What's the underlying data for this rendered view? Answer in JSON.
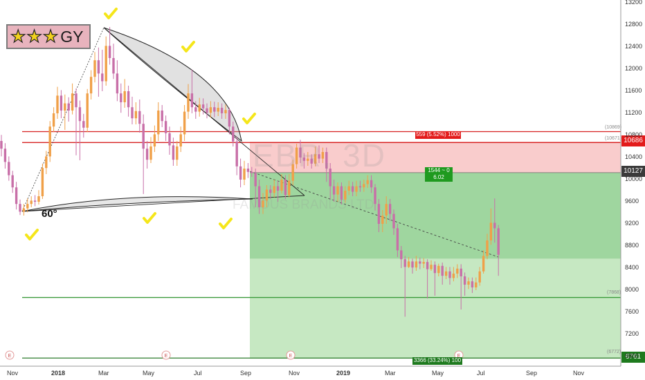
{
  "badge": {
    "star_count": 3,
    "text": "GY"
  },
  "angle_label": "60°",
  "price_axis": {
    "ticks": [
      "13200",
      "12800",
      "12400",
      "12000",
      "11600",
      "11200",
      "10800",
      "10400",
      "10000",
      "9600",
      "9200",
      "8800",
      "8400",
      "8000",
      "7600",
      "7200",
      "6800"
    ],
    "tags": {
      "stop": "10686",
      "entry": "10127",
      "target": "6761"
    }
  },
  "time_axis": {
    "labels": [
      "Nov",
      "2018",
      "Mar",
      "May",
      "Jul",
      "Sep",
      "Nov",
      "2019",
      "Mar",
      "May",
      "Jul",
      "Sep",
      "Nov"
    ],
    "bold": [
      "2018",
      "2019"
    ]
  },
  "position": {
    "risk_label": "559 (5.52%) 1000",
    "rr_line1": "1544 ~ 0",
    "rr_line2": "6.02",
    "reward_label": "3366 (33.24%) 100",
    "levels_small": [
      "(10869)",
      "(10671)",
      "(7868)",
      "(6772)"
    ]
  },
  "watermark": {
    "symbol": "EBR, 3D",
    "name": "FAMOUS BRANDS LTD"
  },
  "colors": {
    "bull_candle": "#f0a048",
    "bear_candle": "#c86fa8",
    "stop_line": "#e31b1b",
    "target_line": "#2e8b2e",
    "check": "#f5e61a"
  },
  "chart_data": {
    "type": "candlestick",
    "yscale": [
      6800,
      13200
    ],
    "x_range": [
      "2017-10-10",
      "2019-11-30"
    ],
    "horizontal_levels": [
      10869,
      10671,
      7868,
      6772
    ],
    "position_box": {
      "entry": 10127,
      "stop": 10686,
      "target": 6761,
      "mid": 8570
    },
    "candles": [
      [
        10700,
        10560,
        10810,
        10420
      ],
      [
        10560,
        10320,
        10660,
        10200
      ],
      [
        10320,
        10080,
        10420,
        9980
      ],
      [
        10080,
        9860,
        10160,
        9760
      ],
      [
        9860,
        9560,
        9960,
        9460
      ],
      [
        9560,
        9420,
        9640,
        9360
      ],
      [
        9420,
        9480,
        9560,
        9350
      ],
      [
        9480,
        9560,
        9660,
        9410
      ],
      [
        9560,
        9620,
        9700,
        9500
      ],
      [
        9620,
        9600,
        9720,
        9520
      ],
      [
        9600,
        9700,
        9810,
        9550
      ],
      [
        9700,
        10210,
        10290,
        9650
      ],
      [
        10210,
        10420,
        10520,
        10100
      ],
      [
        10420,
        10960,
        11060,
        10320
      ],
      [
        10960,
        11200,
        11310,
        10860
      ],
      [
        11200,
        11520,
        11680,
        11100
      ],
      [
        11520,
        11250,
        11620,
        11110
      ],
      [
        11250,
        11380,
        11540,
        10900
      ],
      [
        11380,
        11250,
        11490,
        11050
      ],
      [
        11250,
        11560,
        11740,
        11180
      ],
      [
        11560,
        11310,
        11650,
        10440
      ],
      [
        11310,
        11060,
        11430,
        10350
      ],
      [
        11060,
        10940,
        11190,
        10760
      ],
      [
        10940,
        11560,
        11640,
        10860
      ],
      [
        11560,
        11860,
        11980,
        11450
      ],
      [
        11860,
        12160,
        12310,
        11760
      ],
      [
        12160,
        11920,
        12390,
        11500
      ],
      [
        11920,
        11780,
        12350,
        11600
      ],
      [
        11780,
        12420,
        12590,
        11700
      ],
      [
        12420,
        12200,
        12760,
        12080
      ],
      [
        12200,
        11920,
        12460,
        11820
      ],
      [
        11920,
        11560,
        12160,
        11420
      ],
      [
        11560,
        11400,
        11740,
        11210
      ],
      [
        11400,
        11600,
        11820,
        11300
      ],
      [
        11600,
        11310,
        11700,
        11140
      ],
      [
        11310,
        11110,
        11500,
        11000
      ],
      [
        11110,
        11240,
        11400,
        11000
      ],
      [
        11240,
        11010,
        11450,
        10850
      ],
      [
        11010,
        10560,
        11180,
        9740
      ],
      [
        10560,
        10360,
        10700,
        10200
      ],
      [
        10360,
        10600,
        10770,
        10300
      ],
      [
        10600,
        10820,
        10980,
        10500
      ],
      [
        10820,
        11250,
        11400,
        10700
      ],
      [
        11250,
        11060,
        11350,
        10950
      ],
      [
        11060,
        10840,
        11160,
        10700
      ],
      [
        10840,
        10620,
        10960,
        10450
      ],
      [
        10620,
        10360,
        10760,
        10250
      ],
      [
        10360,
        10600,
        10700,
        10250
      ],
      [
        10600,
        10820,
        10960,
        10500
      ],
      [
        10820,
        11230,
        11350,
        10700
      ],
      [
        11230,
        11560,
        11730,
        11100
      ],
      [
        11560,
        11310,
        11990,
        11200
      ],
      [
        11310,
        11230,
        11420,
        11100
      ],
      [
        11230,
        11360,
        11480,
        11140
      ],
      [
        11360,
        11290,
        11470,
        11180
      ],
      [
        11290,
        11210,
        11380,
        11110
      ],
      [
        11210,
        11310,
        11420,
        11120
      ],
      [
        11310,
        11230,
        11410,
        11130
      ],
      [
        11230,
        11300,
        11400,
        11150
      ],
      [
        11300,
        11200,
        11380,
        11100
      ],
      [
        11200,
        11260,
        11360,
        11100
      ],
      [
        11260,
        10960,
        11300,
        10820
      ],
      [
        10960,
        10690,
        11050,
        10600
      ],
      [
        10690,
        10240,
        10780,
        10080
      ],
      [
        10240,
        10000,
        10380,
        9860
      ],
      [
        10000,
        10200,
        10340,
        9900
      ],
      [
        10200,
        10140,
        10300,
        10030
      ],
      [
        10140,
        10120,
        10230,
        10050
      ],
      [
        10120,
        9880,
        10200,
        9500
      ],
      [
        9880,
        9500,
        10000,
        9380
      ],
      [
        9500,
        9620,
        9760,
        9380
      ],
      [
        9620,
        9820,
        9900,
        9500
      ],
      [
        9820,
        9760,
        9900,
        9650
      ],
      [
        9760,
        9880,
        10000,
        9680
      ],
      [
        9880,
        9800,
        9980,
        9600
      ],
      [
        9800,
        10000,
        10100,
        9750
      ],
      [
        10000,
        9720,
        10080,
        9650
      ],
      [
        9720,
        9980,
        10100,
        9680
      ],
      [
        9980,
        10280,
        10360,
        9900
      ],
      [
        10280,
        10580,
        10650,
        10200
      ],
      [
        10580,
        10400,
        10720,
        10300
      ],
      [
        10400,
        10340,
        10480,
        10200
      ],
      [
        10340,
        10380,
        10500,
        10250
      ],
      [
        10380,
        10290,
        10460,
        10200
      ],
      [
        10290,
        10460,
        10600,
        10240
      ],
      [
        10460,
        10380,
        10620,
        10300
      ],
      [
        10380,
        10500,
        10580,
        10300
      ],
      [
        10500,
        10200,
        10580,
        9960
      ],
      [
        10200,
        9880,
        10300,
        9650
      ],
      [
        9880,
        9730,
        10000,
        9600
      ],
      [
        9730,
        9880,
        9950,
        9600
      ],
      [
        9880,
        9640,
        9950,
        9550
      ],
      [
        9640,
        9800,
        9880,
        9580
      ],
      [
        9800,
        9880,
        9980,
        9720
      ],
      [
        9880,
        9780,
        9960,
        9700
      ],
      [
        9780,
        9880,
        9980,
        9700
      ],
      [
        9880,
        9860,
        9980,
        9780
      ],
      [
        9860,
        9920,
        10000,
        9780
      ],
      [
        9920,
        9990,
        10080,
        9850
      ],
      [
        9990,
        9860,
        10080,
        9760
      ],
      [
        9860,
        9560,
        9920,
        9440
      ],
      [
        9560,
        9200,
        9650,
        9050
      ],
      [
        9200,
        9350,
        9450,
        9050
      ],
      [
        9350,
        9560,
        9700,
        9200
      ],
      [
        9560,
        9380,
        9650,
        9250
      ],
      [
        9380,
        9120,
        9460,
        9000
      ],
      [
        9120,
        8720,
        9200,
        8600
      ],
      [
        8720,
        8560,
        8800,
        8400
      ],
      [
        8560,
        8420,
        8620,
        7520
      ],
      [
        8420,
        8520,
        8600,
        8400
      ],
      [
        8520,
        8410,
        8570,
        8300
      ],
      [
        8410,
        8520,
        8620,
        8350
      ],
      [
        8520,
        8480,
        8590,
        8380
      ],
      [
        8480,
        8510,
        8580,
        8400
      ],
      [
        8510,
        8380,
        8560,
        7850
      ],
      [
        8380,
        8460,
        8540,
        8350
      ],
      [
        8460,
        8310,
        8520,
        7900
      ],
      [
        8310,
        8440,
        8480,
        8250
      ],
      [
        8440,
        8260,
        8500,
        8100
      ],
      [
        8260,
        8340,
        8420,
        8200
      ],
      [
        8340,
        8220,
        8420,
        8100
      ],
      [
        8220,
        8300,
        8420,
        8160
      ],
      [
        8300,
        8390,
        8470,
        8220
      ],
      [
        8390,
        8250,
        8470,
        7650
      ],
      [
        8250,
        8100,
        8320,
        7900
      ],
      [
        8100,
        8160,
        8230,
        8020
      ],
      [
        8160,
        8050,
        8230,
        7950
      ],
      [
        8050,
        8140,
        8230,
        8000
      ],
      [
        8140,
        8340,
        8420,
        8080
      ],
      [
        8340,
        8620,
        8720,
        8300
      ],
      [
        8620,
        8900,
        9020,
        8560
      ],
      [
        8900,
        9220,
        9480,
        8820
      ],
      [
        9220,
        9120,
        9660,
        8860
      ],
      [
        9120,
        8640,
        9180,
        8260
      ]
    ]
  }
}
